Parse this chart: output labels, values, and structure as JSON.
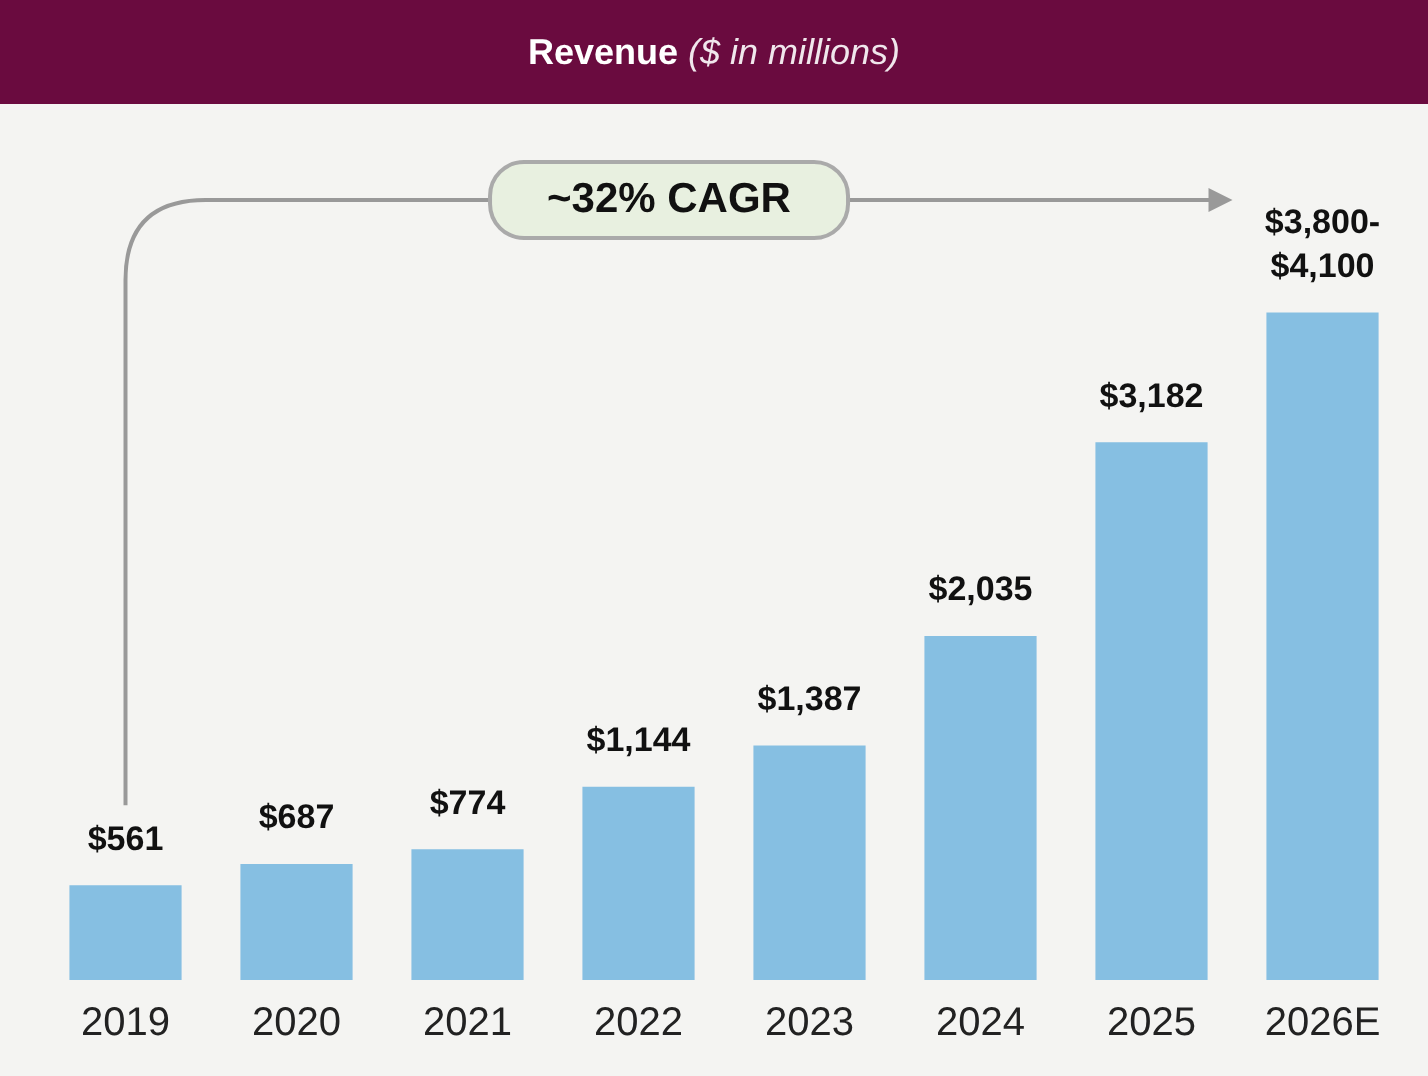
{
  "chart_data": {
    "type": "bar",
    "title": "Revenue",
    "subtitle": "($ in millions)",
    "categories": [
      "2019",
      "2020",
      "2021",
      "2022",
      "2023",
      "2024",
      "2025",
      "2026E"
    ],
    "values": [
      561,
      687,
      774,
      1144,
      1387,
      2035,
      3182,
      3950
    ],
    "value_labels": [
      "$561",
      "$687",
      "$774",
      "$1,144",
      "$1,387",
      "$2,035",
      "$3,182",
      "$3,800-\n$4,100"
    ],
    "color": "#86bfe2",
    "annotations": [
      "~32% CAGR"
    ],
    "grid": false,
    "legend": false
  }
}
